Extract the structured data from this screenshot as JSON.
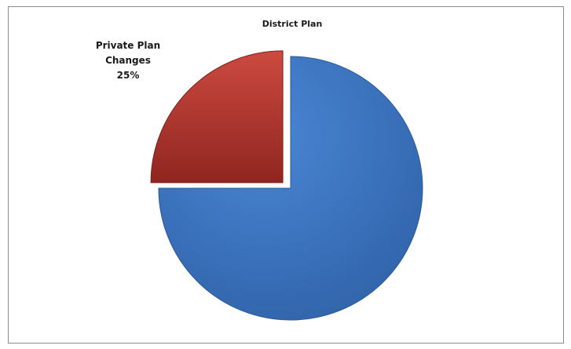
{
  "chart_data": {
    "type": "pie",
    "title": "District Plan",
    "slices": [
      {
        "name": "",
        "value": 75,
        "label": "",
        "percent_label": "",
        "color": "#3f79c6"
      },
      {
        "name": "Private Plan Changes",
        "value": 25,
        "label": "Private Plan",
        "label_line2": "Changes",
        "percent_label": "25%",
        "color": "#c0392f",
        "exploded": true
      }
    ],
    "start_angle_deg": 0,
    "direction": "clockwise"
  }
}
